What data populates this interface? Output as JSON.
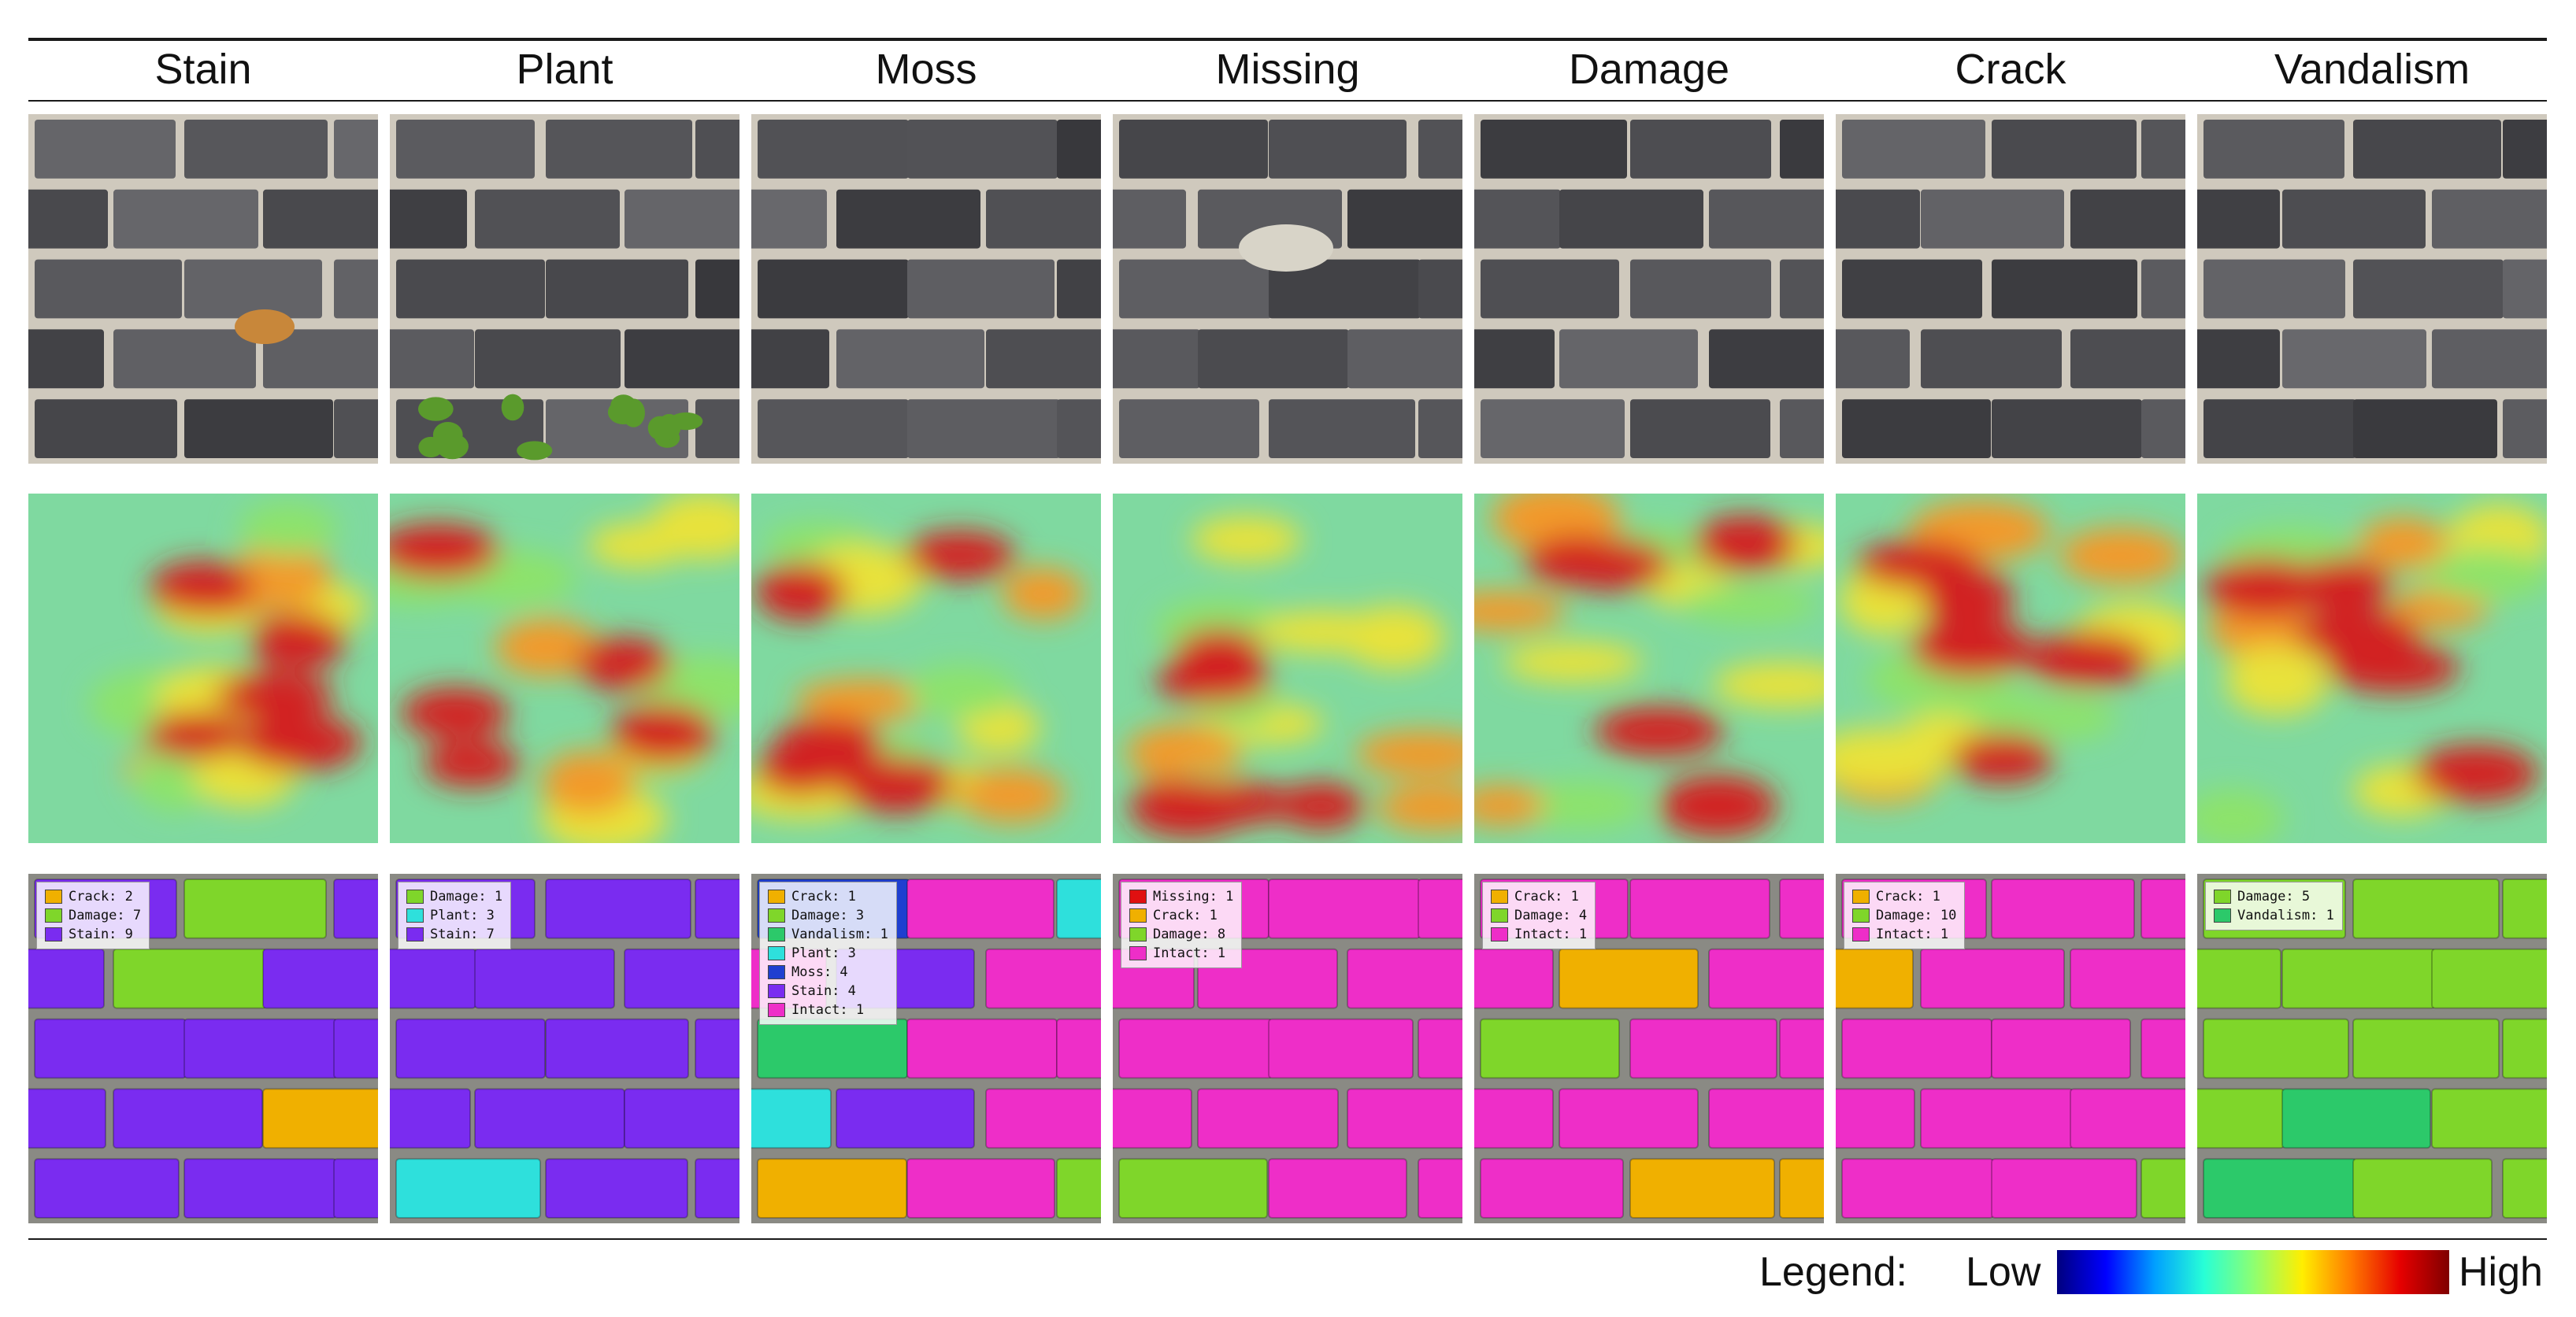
{
  "header": {
    "columns": [
      "Stain",
      "Plant",
      "Moss",
      "Missing",
      "Damage",
      "Crack",
      "Vandalism"
    ]
  },
  "palette": {
    "Crack": "#f0b000",
    "Damage": "#7fd62a",
    "Stain": "#7a2cf0",
    "Plant": "#2ee0dc",
    "Vandalism": "#2cc96a",
    "Moss": "#1f3fd0",
    "Intact": "#ee2ec8",
    "Missing": "#e01010"
  },
  "summaries": [
    {
      "column": "Stain",
      "items": [
        {
          "cls": "Crack",
          "label": "Crack: 2"
        },
        {
          "cls": "Damage",
          "label": "Damage: 7"
        },
        {
          "cls": "Stain",
          "label": "Stain: 9"
        }
      ]
    },
    {
      "column": "Plant",
      "items": [
        {
          "cls": "Damage",
          "label": "Damage: 1"
        },
        {
          "cls": "Plant",
          "label": "Plant: 3"
        },
        {
          "cls": "Stain",
          "label": "Stain: 7"
        }
      ]
    },
    {
      "column": "Moss",
      "items": [
        {
          "cls": "Crack",
          "label": "Crack: 1"
        },
        {
          "cls": "Damage",
          "label": "Damage: 3"
        },
        {
          "cls": "Vandalism",
          "label": "Vandalism: 1"
        },
        {
          "cls": "Plant",
          "label": "Plant: 3"
        },
        {
          "cls": "Moss",
          "label": "Moss: 4"
        },
        {
          "cls": "Stain",
          "label": "Stain: 4"
        },
        {
          "cls": "Intact",
          "label": "Intact: 1"
        }
      ]
    },
    {
      "column": "Missing",
      "items": [
        {
          "cls": "Missing",
          "label": "Missing: 1"
        },
        {
          "cls": "Crack",
          "label": "Crack: 1"
        },
        {
          "cls": "Damage",
          "label": "Damage: 8"
        },
        {
          "cls": "Intact",
          "label": "Intact: 1"
        }
      ]
    },
    {
      "column": "Damage",
      "items": [
        {
          "cls": "Crack",
          "label": "Crack: 1"
        },
        {
          "cls": "Damage",
          "label": "Damage: 4"
        },
        {
          "cls": "Intact",
          "label": "Intact: 1"
        }
      ]
    },
    {
      "column": "Crack",
      "items": [
        {
          "cls": "Crack",
          "label": "Crack: 1"
        },
        {
          "cls": "Damage",
          "label": "Damage: 10"
        },
        {
          "cls": "Intact",
          "label": "Intact: 1"
        }
      ]
    },
    {
      "column": "Vandalism",
      "items": [
        {
          "cls": "Damage",
          "label": "Damage: 5"
        },
        {
          "cls": "Vandalism",
          "label": "Vandalism: 1"
        }
      ]
    }
  ],
  "legend": {
    "title": "Legend:",
    "low": "Low",
    "high": "High"
  }
}
